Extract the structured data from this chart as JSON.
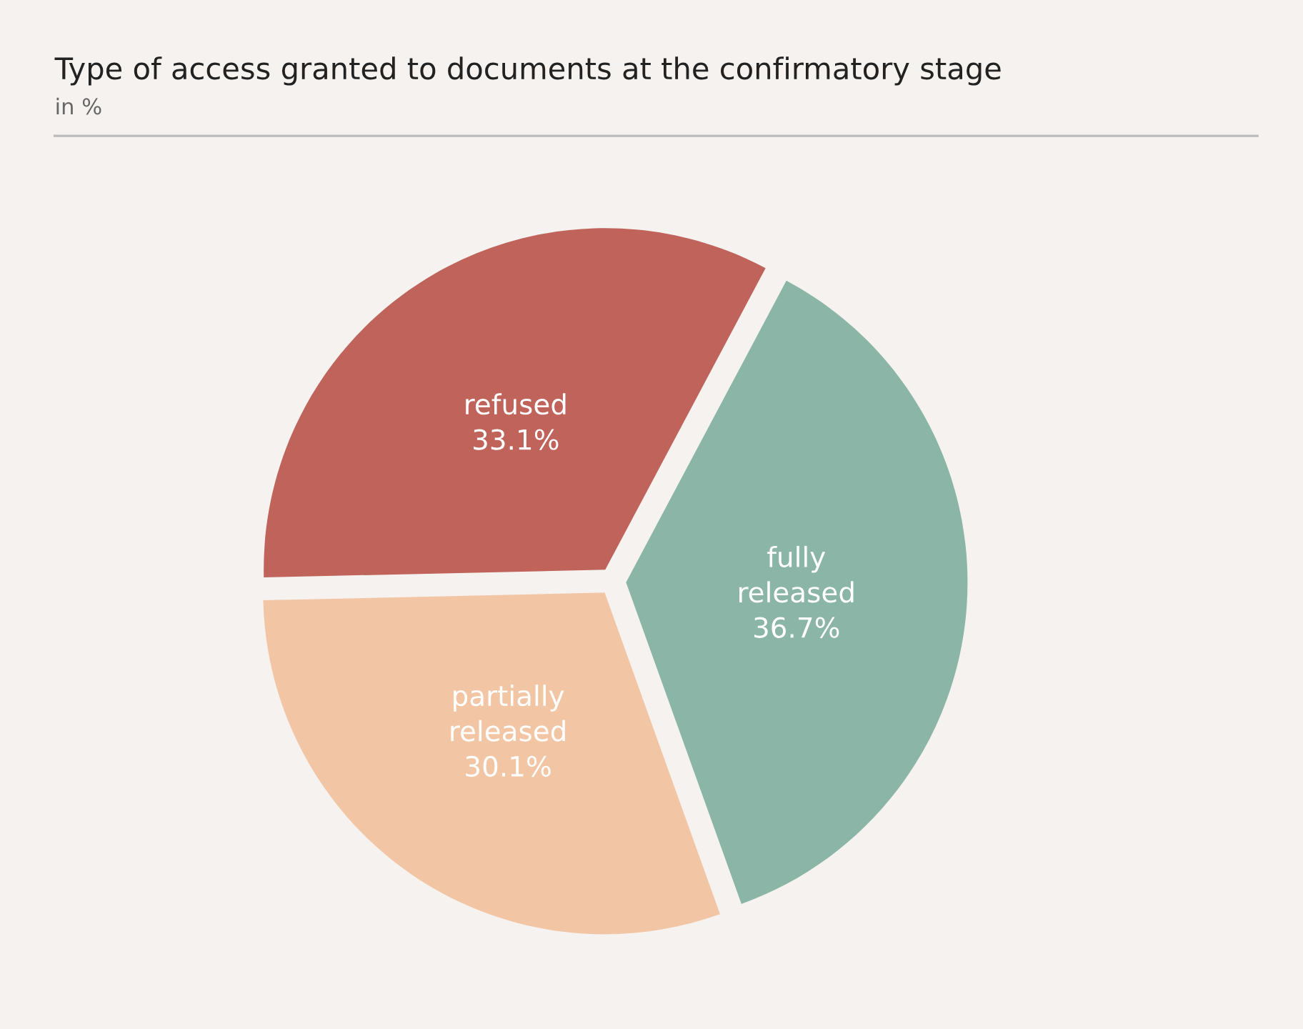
{
  "chart_data": {
    "type": "pie",
    "title": "Type of access granted to documents at the confirmatory stage",
    "subtitle": "in %",
    "categories": [
      "fully released",
      "partially released",
      "refused"
    ],
    "values": [
      36.7,
      30.1,
      33.1
    ],
    "value_labels": [
      "36.7%",
      "30.1%",
      "33.1%"
    ],
    "colors": [
      "#8bb5a7",
      "#f2c6a5",
      "#c0635a"
    ],
    "legend": false
  }
}
